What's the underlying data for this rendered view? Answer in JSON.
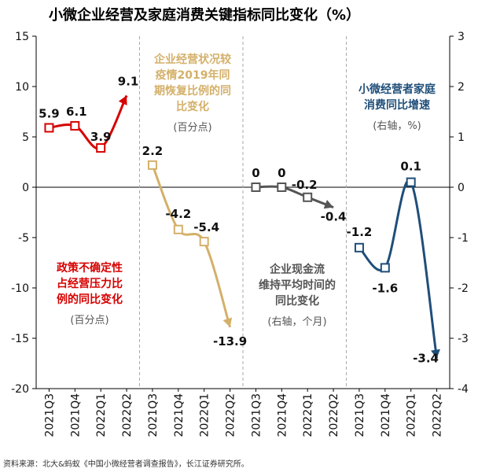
{
  "title": "小微企业经营及家庭消费关键指标同比变化（%）",
  "source_note": "资料来源：北大&蚂蚁《中国小微经营者调查报告》，长江证券研究所。",
  "colors": {
    "title": "#e00000",
    "red": "#d60000",
    "gold": "#d4b06a",
    "gray": "#555555",
    "blue": "#1f4e79"
  },
  "chart_data": {
    "type": "line",
    "title": "小微企业经营及家庭消费关键指标同比变化（%）",
    "left_axis": {
      "range": [
        -20,
        15
      ],
      "ticks": [
        "15",
        "10",
        "5",
        "0",
        "-5",
        "-10",
        "-15",
        "-20"
      ],
      "tick_values": [
        15,
        10,
        5,
        0,
        -5,
        -10,
        -15,
        -20
      ]
    },
    "right_axis": {
      "range": [
        -4,
        3
      ],
      "ticks": [
        "3",
        "2",
        "1",
        "0",
        "-1",
        "-2",
        "-3",
        "-4"
      ],
      "tick_values": [
        3,
        2,
        1,
        0,
        -1,
        -2,
        -3,
        -4
      ]
    },
    "series": [
      {
        "name": "政策不确定性占经营压力比例的同比变化",
        "axis": "left",
        "color": "red",
        "categories": [
          "2021Q3",
          "2021Q4",
          "2022Q1",
          "2022Q2"
        ],
        "values": [
          5.9,
          6.1,
          3.9,
          9.1
        ],
        "labels": [
          "5.9",
          "6.1",
          "3.9",
          "9.1"
        ],
        "annotation": [
          "政策不确定性",
          "占经营压力比",
          "例的同比变化"
        ],
        "annotation_unit": "(百分点)"
      },
      {
        "name": "企业经营状况较疫情2019年同期恢复比例的同比变化",
        "axis": "left",
        "color": "gold",
        "categories": [
          "2021Q3",
          "2021Q4",
          "2022Q1",
          "2022Q2"
        ],
        "values": [
          2.2,
          -4.2,
          -5.4,
          -13.9
        ],
        "labels": [
          "2.2",
          "-4.2",
          "-5.4",
          "-13.9"
        ],
        "annotation": [
          "企业经营状况较",
          "疫情2019年同",
          "期恢复比例的同",
          "比变化"
        ],
        "annotation_unit": "(百分点)"
      },
      {
        "name": "企业现金流维持平均时间的同比变化",
        "axis": "right",
        "color": "gray",
        "categories": [
          "2021Q3",
          "2021Q4",
          "2022Q1",
          "2022Q2"
        ],
        "values": [
          0,
          0,
          -0.2,
          -0.4
        ],
        "labels": [
          "0",
          "0",
          "-0.2",
          "-0.4"
        ],
        "annotation": [
          "企业现金流",
          "维持平均时间的",
          "同比变化"
        ],
        "annotation_unit": "(右轴，个月)"
      },
      {
        "name": "小微经营者家庭消费同比增速",
        "axis": "right",
        "color": "blue",
        "categories": [
          "2021Q3",
          "2021Q4",
          "2022Q1",
          "2022Q2"
        ],
        "values": [
          -1.2,
          -1.6,
          0.1,
          -3.4
        ],
        "labels": [
          "-1.2",
          "-1.6",
          "0.1",
          "-3.4"
        ],
        "annotation": [
          "小微经营者家庭",
          "消费同比增速"
        ],
        "annotation_unit": "(右轴，%)"
      }
    ]
  }
}
